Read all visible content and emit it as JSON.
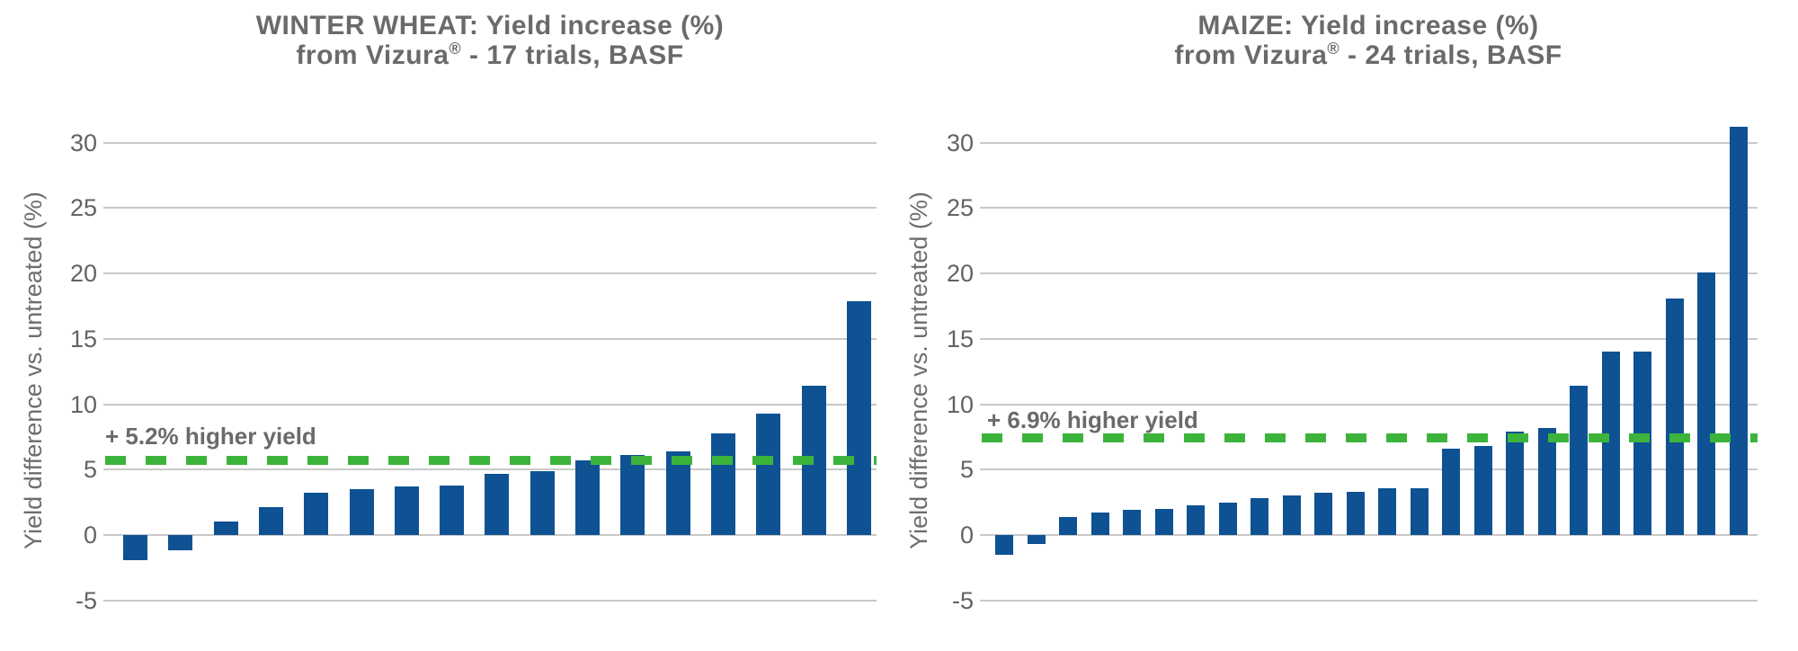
{
  "page": {
    "background": "#ffffff"
  },
  "chart_data": [
    {
      "type": "bar",
      "title_line1": "WINTER WHEAT: Yield increase (%)",
      "title_line2_pre": "from Vizura",
      "title_line2_sup": "®",
      "title_line2_post": " - 17 trials, BASF",
      "ylabel": "Yield difference vs. untreated (%)",
      "xlabel": "",
      "annotation": "+ 5.2% higher yield",
      "trials": 17,
      "values": [
        -1.9,
        -1.2,
        1.0,
        2.1,
        3.2,
        3.5,
        3.7,
        3.8,
        4.7,
        4.9,
        5.7,
        6.1,
        6.4,
        7.8,
        9.3,
        11.4,
        17.9
      ],
      "mean_value": 5.2,
      "dash_line_value": 5.7,
      "y_ticks": [
        30,
        25,
        20,
        15,
        10,
        5,
        0,
        -5
      ],
      "ylim": [
        -5,
        31.5
      ],
      "grid": true,
      "legend": false,
      "bar_color": "#0E5293",
      "dash_color": "#3CB43C",
      "grid_color": "#C9C9C9",
      "text_color": "#6A6A6A"
    },
    {
      "type": "bar",
      "title_line1": "MAIZE: Yield increase (%)",
      "title_line2_pre": "from Vizura",
      "title_line2_sup": "®",
      "title_line2_post": " - 24 trials, BASF",
      "ylabel": "Yield difference vs. untreated (%)",
      "xlabel": "",
      "annotation": "+ 6.9% higher yield",
      "trials": 24,
      "values": [
        -1.5,
        -0.7,
        1.4,
        1.7,
        1.9,
        2.0,
        2.3,
        2.5,
        2.8,
        3.0,
        3.2,
        3.3,
        3.6,
        3.6,
        6.6,
        6.8,
        7.9,
        8.2,
        11.4,
        14.0,
        14.0,
        18.1,
        20.1,
        31.2
      ],
      "mean_value": 6.9,
      "dash_line_value": 7.4,
      "y_ticks": [
        30,
        25,
        20,
        15,
        10,
        5,
        0,
        -5
      ],
      "ylim": [
        -5,
        31.5
      ],
      "grid": true,
      "legend": false,
      "bar_color": "#0E5293",
      "dash_color": "#3CB43C",
      "grid_color": "#C9C9C9",
      "text_color": "#6A6A6A"
    }
  ]
}
